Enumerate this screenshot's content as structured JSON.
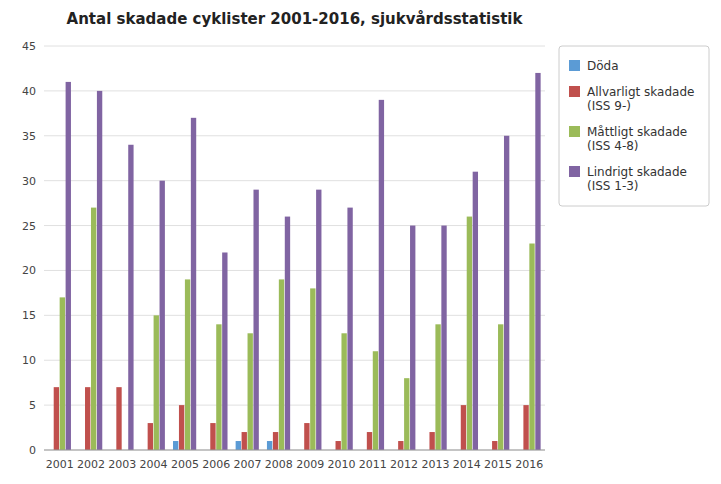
{
  "chart_data": {
    "type": "bar",
    "title": "Antal skadade cyklister 2001-2016, sjukvårdsstatistik",
    "categories": [
      "2001",
      "2002",
      "2003",
      "2004",
      "2005",
      "2006",
      "2007",
      "2008",
      "2009",
      "2010",
      "2011",
      "2012",
      "2013",
      "2014",
      "2015",
      "2016"
    ],
    "series": [
      {
        "name": "Döda",
        "color": "#5B9BD5",
        "values": [
          0,
          0,
          0,
          0,
          1,
          0,
          1,
          1,
          0,
          0,
          0,
          0,
          0,
          0,
          0,
          0
        ]
      },
      {
        "name": "Allvarligt skadade\n(ISS 9-)",
        "color": "#C0504D",
        "values": [
          7,
          7,
          7,
          3,
          5,
          3,
          2,
          2,
          3,
          1,
          2,
          1,
          2,
          5,
          1,
          5
        ]
      },
      {
        "name": "Måttligt skadade\n(ISS 4-8)",
        "color": "#9BBB59",
        "values": [
          17,
          27,
          0,
          15,
          19,
          14,
          13,
          19,
          18,
          13,
          11,
          8,
          14,
          26,
          14,
          23
        ]
      },
      {
        "name": "Lindrigt skadade\n(ISS 1-3)",
        "color": "#8064A2",
        "values": [
          41,
          40,
          34,
          30,
          37,
          22,
          29,
          26,
          29,
          27,
          39,
          25,
          25,
          31,
          35,
          42
        ]
      }
    ],
    "ylim": [
      0,
      45
    ],
    "yticks": [
      0,
      5,
      10,
      15,
      20,
      25,
      30,
      35,
      40,
      45
    ],
    "grid": true,
    "legend": "right"
  }
}
